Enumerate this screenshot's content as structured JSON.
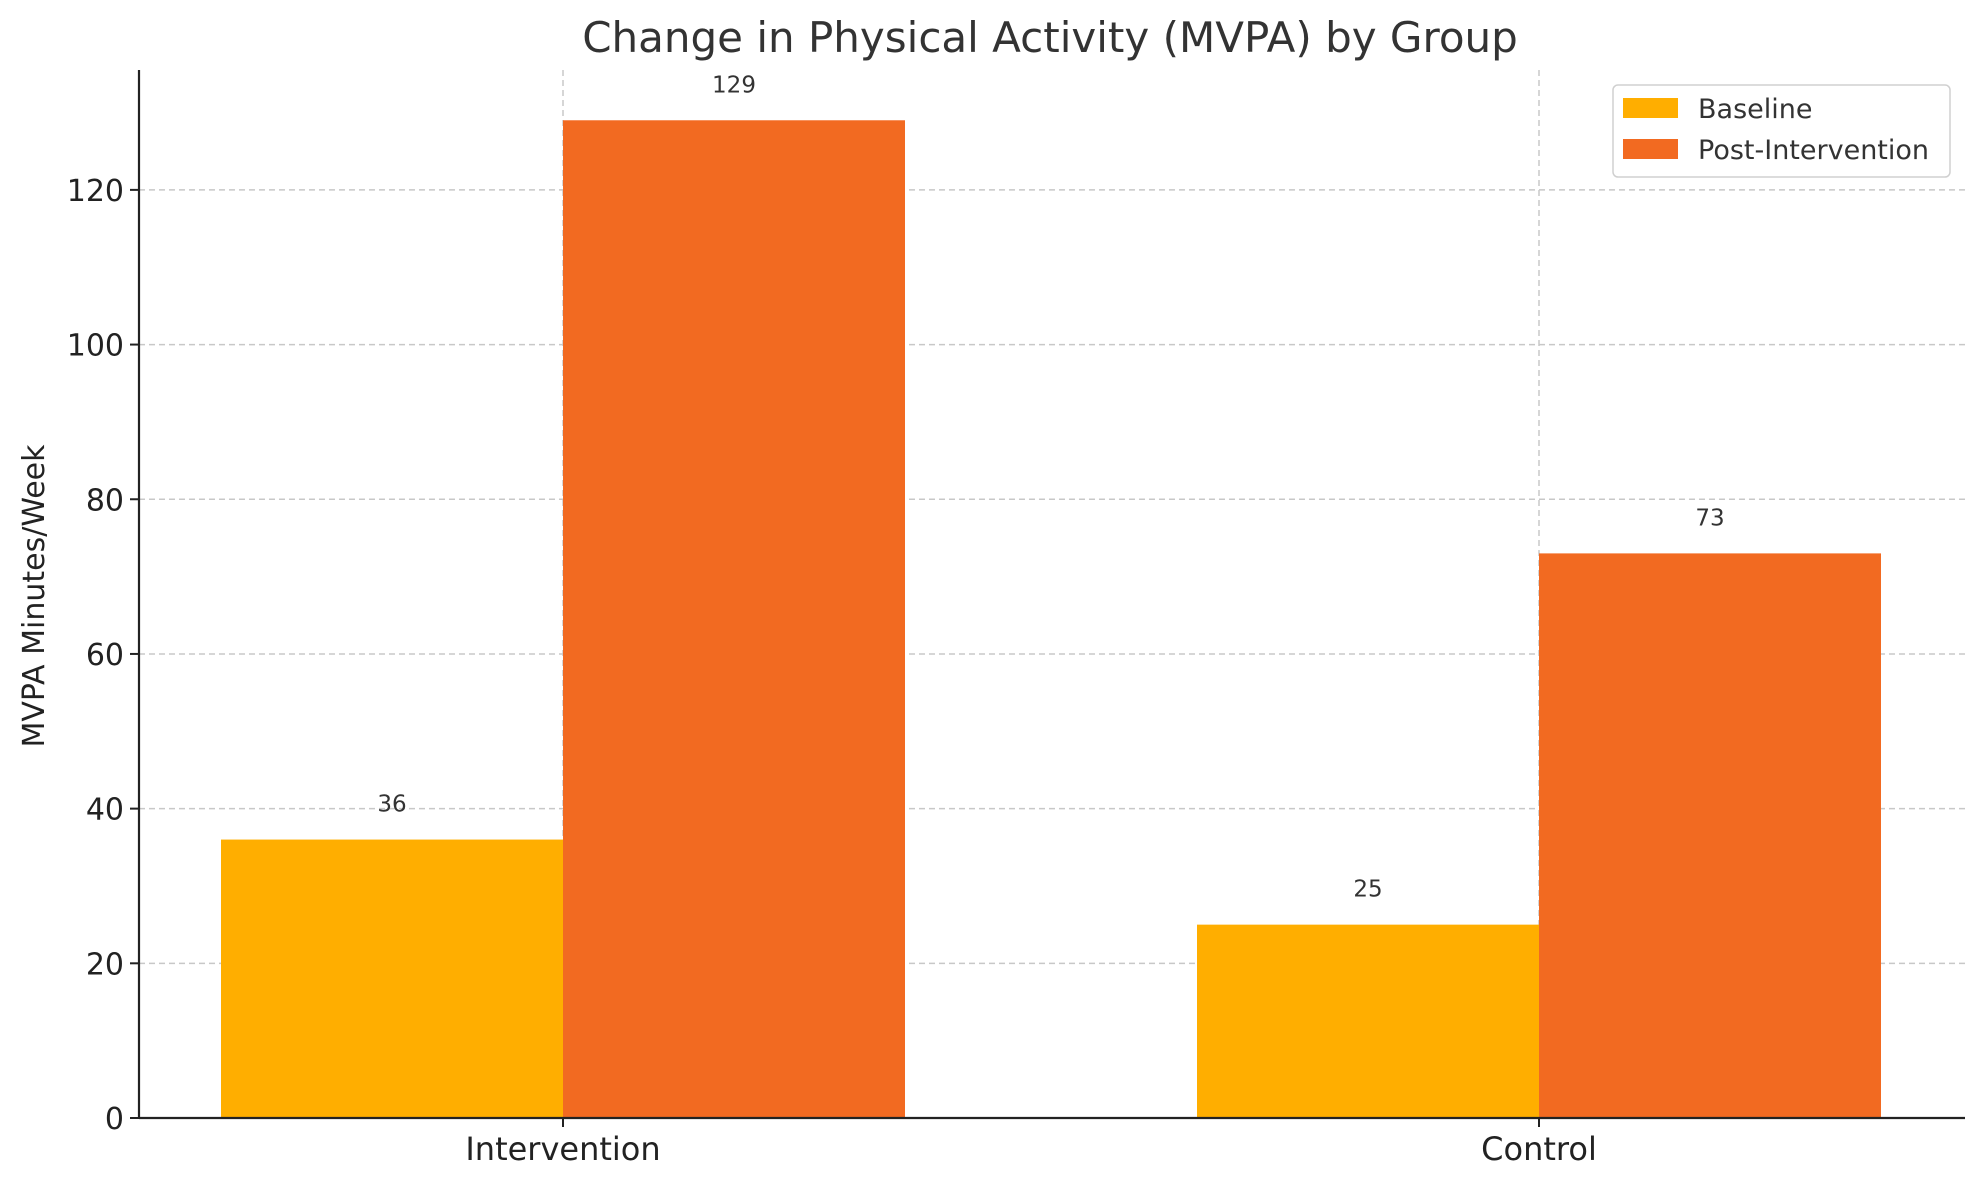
{
  "chart_data": {
    "type": "bar",
    "title": "Change in Physical Activity (MVPA) by Group",
    "xlabel": "",
    "ylabel": "MVPA Minutes/Week",
    "categories": [
      "Intervention",
      "Control"
    ],
    "series": [
      {
        "name": "Baseline",
        "color": "#FFAE00",
        "values": [
          36,
          25
        ]
      },
      {
        "name": "Post-Intervention",
        "color": "#F26A21",
        "values": [
          129,
          73
        ]
      }
    ],
    "ylim": [
      0,
      135.5
    ],
    "yticks": [
      0,
      20,
      40,
      60,
      80,
      100,
      120
    ],
    "grid": true,
    "legend": "top-right"
  }
}
